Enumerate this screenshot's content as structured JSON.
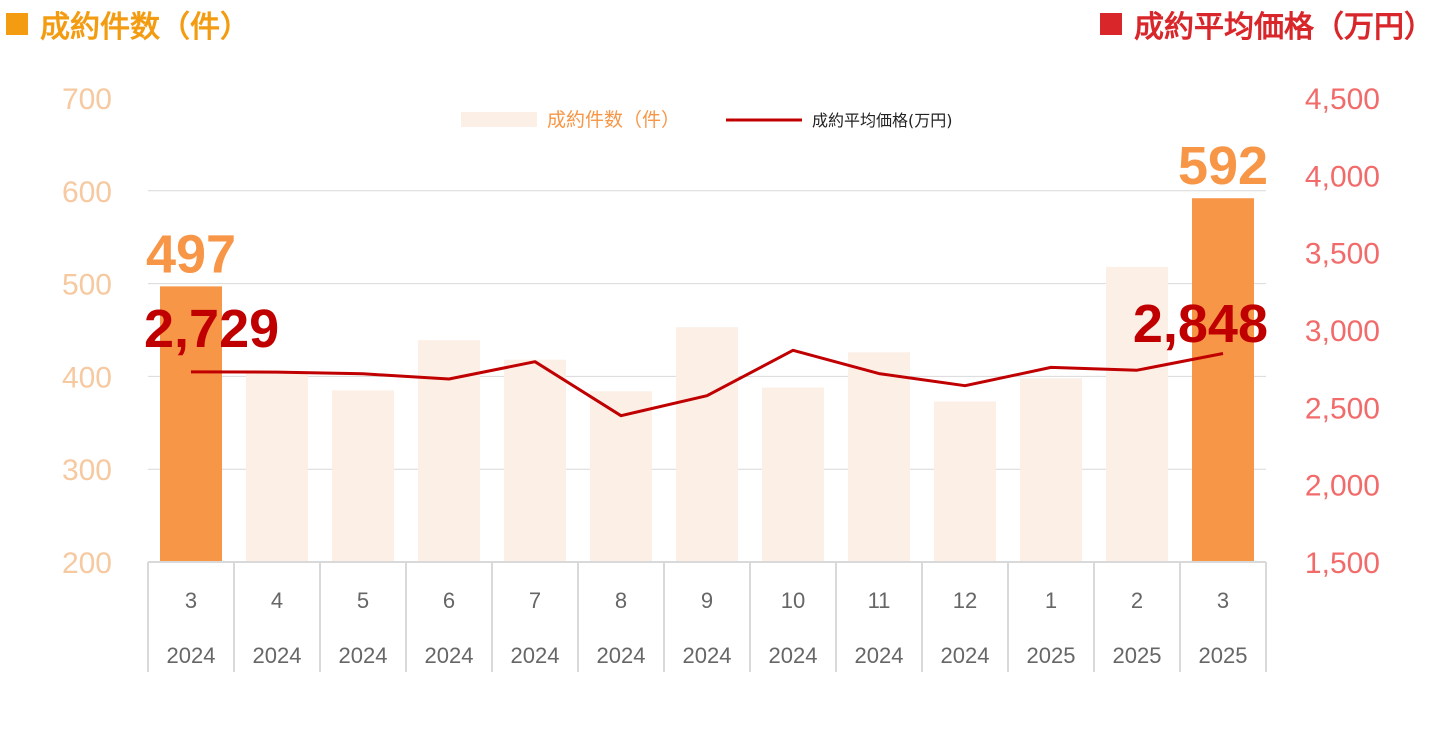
{
  "titles": {
    "left": "成約件数（件）",
    "right": "成約平均価格（万円）"
  },
  "colors": {
    "count_axis": "#f6c9a0",
    "price_axis": "#f26b6b",
    "bar_highlight": "#f79646",
    "bar_normal": "#fcefe6",
    "line": "#c00000",
    "left_title": "#f39c12",
    "right_title": "#d9262b",
    "grid": "#d9d9d9",
    "count_label": "#f79646",
    "price_label": "#c00000"
  },
  "chart_data": {
    "type": "bar",
    "categories": [
      "3",
      "4",
      "5",
      "6",
      "7",
      "8",
      "9",
      "10",
      "11",
      "12",
      "1",
      "2",
      "3"
    ],
    "years": [
      "2024",
      "2024",
      "2024",
      "2024",
      "2024",
      "2024",
      "2024",
      "2024",
      "2024",
      "2024",
      "2025",
      "2025",
      "2025"
    ],
    "series": [
      {
        "name": "成約件数（件）",
        "type": "bar",
        "axis": "left",
        "values": [
          497,
          404,
          385,
          439,
          418,
          384,
          453,
          388,
          426,
          373,
          398,
          518,
          592
        ],
        "highlight": [
          true,
          false,
          false,
          false,
          false,
          false,
          false,
          false,
          false,
          false,
          false,
          false,
          true
        ]
      },
      {
        "name": "成約平均価格(万円)",
        "type": "line",
        "axis": "right",
        "values": [
          2729,
          2728,
          2717,
          2683,
          2795,
          2446,
          2575,
          2869,
          2718,
          2640,
          2758,
          2740,
          2848
        ]
      }
    ],
    "y_left": {
      "min": 200,
      "max": 700,
      "ticks": [
        "200",
        "300",
        "400",
        "500",
        "600",
        "700"
      ]
    },
    "y_right": {
      "min": 1500,
      "max": 4500,
      "ticks": [
        "1,500",
        "2,000",
        "2,500",
        "3,000",
        "3,500",
        "4,000",
        "4,500"
      ]
    },
    "data_labels": {
      "first_count": "497",
      "last_count": "592",
      "first_price": "2,729",
      "last_price": "2,848"
    },
    "legend_position": "top-center",
    "grid": true
  }
}
